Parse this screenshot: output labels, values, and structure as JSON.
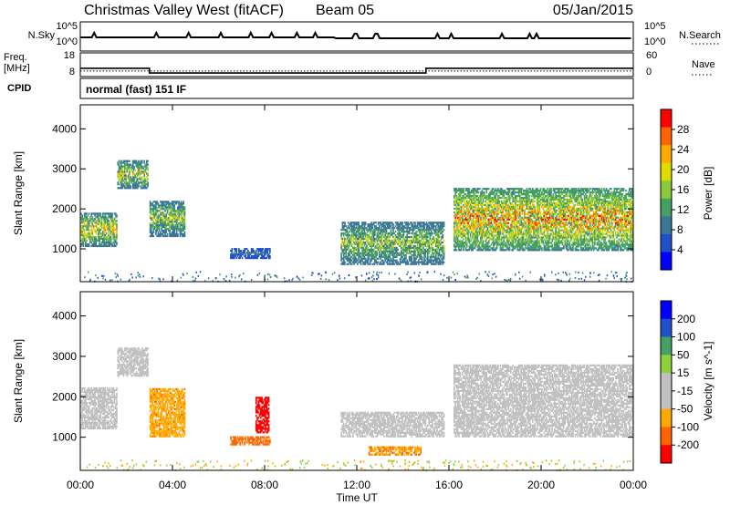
{
  "header": {
    "station": "Christmas Valley West (fitACF)",
    "beam": "Beam 05",
    "date": "05/Jan/2015"
  },
  "top_panel": {
    "nsky_label": "N.Sky",
    "nsky_ticks": [
      "10^5",
      "10^0"
    ],
    "nsearch_label": "N.Search",
    "nsearch_ticks": [
      "10^5",
      "10^0"
    ],
    "freq_label_1": "Freq.",
    "freq_label_2": "[MHz]",
    "freq_ticks": [
      "18",
      "8"
    ],
    "nave_label": "Nave",
    "nave_ticks": [
      "60",
      "0"
    ],
    "cpid_label": "CPID",
    "cpid_value": "normal (fast) 151 IF"
  },
  "x_axis": {
    "label": "Time UT",
    "ticks": [
      "00:00",
      "04:00",
      "08:00",
      "12:00",
      "16:00",
      "20:00",
      "00:00"
    ]
  },
  "colors": {
    "power_scale": [
      "#0000ff",
      "#2050c8",
      "#3c7896",
      "#46a064",
      "#8cc83c",
      "#dcdc00",
      "#ffaa00",
      "#ff6400",
      "#ff0000"
    ],
    "velocity_scale": [
      "#ff0000",
      "#ff6400",
      "#ffaa00",
      "#c0c0c0",
      "#c0c0c0",
      "#8cd23c",
      "#46a064",
      "#2050c8",
      "#0000ff"
    ],
    "ground_scatter": "#c0c0c0"
  },
  "chart_data": [
    {
      "type": "heatmap",
      "title": "",
      "xlabel": "Time UT",
      "ylabel": "Slant Range [km]",
      "xlim": [
        0,
        24
      ],
      "ylim": [
        180,
        4600
      ],
      "yticks": [
        1000,
        2000,
        3000,
        4000
      ],
      "colorbar": {
        "label": "Power [dB]",
        "ticks": [
          "28",
          "24",
          "20",
          "16",
          "12",
          "8",
          "4"
        ],
        "range": [
          0,
          30
        ]
      },
      "regions": [
        {
          "t0": 0.0,
          "t1": 1.6,
          "r0": 1050,
          "r1": 1900,
          "peak": 24
        },
        {
          "t0": 1.6,
          "t1": 2.9,
          "r0": 2500,
          "r1": 3200,
          "peak": 22
        },
        {
          "t0": 3.0,
          "t1": 4.5,
          "r0": 1300,
          "r1": 2200,
          "peak": 20
        },
        {
          "t0": 6.5,
          "t1": 8.2,
          "r0": 750,
          "r1": 1000,
          "peak": 10
        },
        {
          "t0": 11.3,
          "t1": 15.8,
          "r0": 600,
          "r1": 1650,
          "peak": 20
        },
        {
          "t0": 16.2,
          "t1": 24.0,
          "r0": 950,
          "r1": 2500,
          "peak": 28
        }
      ]
    },
    {
      "type": "heatmap",
      "title": "",
      "xlabel": "Time UT",
      "ylabel": "Slant Range [km]",
      "xlim": [
        0,
        24
      ],
      "ylim": [
        180,
        4600
      ],
      "yticks": [
        1000,
        2000,
        3000,
        4000
      ],
      "colorbar": {
        "label": "Velocity [m s^-1]",
        "ticks": [
          "200",
          "100",
          "50",
          "15",
          "-15",
          "-50",
          "-100",
          "-200"
        ],
        "range": [
          -250,
          250
        ]
      },
      "regions": [
        {
          "t0": 0.0,
          "t1": 1.6,
          "r0": 1200,
          "r1": 2200,
          "velocity": 0,
          "ground_scatter": true
        },
        {
          "t0": 1.6,
          "t1": 2.9,
          "r0": 2500,
          "r1": 3200,
          "velocity": 0,
          "ground_scatter": true
        },
        {
          "t0": 3.0,
          "t1": 4.5,
          "r0": 1000,
          "r1": 2200,
          "velocity": -60
        },
        {
          "t0": 6.5,
          "t1": 8.2,
          "r0": 800,
          "r1": 1000,
          "velocity": -90
        },
        {
          "t0": 7.6,
          "t1": 8.2,
          "r0": 1100,
          "r1": 2000,
          "velocity": -200
        },
        {
          "t0": 11.3,
          "t1": 15.8,
          "r0": 1000,
          "r1": 1600,
          "velocity": 0,
          "ground_scatter": true
        },
        {
          "t0": 12.5,
          "t1": 14.8,
          "r0": 550,
          "r1": 750,
          "velocity": -70
        },
        {
          "t0": 16.2,
          "t1": 24.0,
          "r0": 1000,
          "r1": 2800,
          "velocity": 0,
          "ground_scatter": true
        }
      ]
    }
  ]
}
